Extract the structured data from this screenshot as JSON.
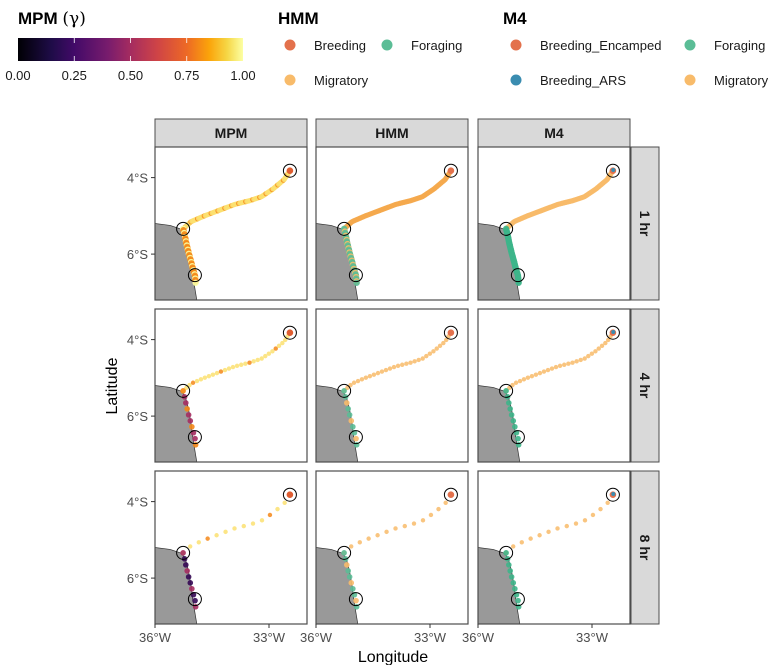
{
  "chart_data": {
    "type": "scatter",
    "facet_columns": [
      "MPM",
      "HMM",
      "M4"
    ],
    "facet_rows": [
      "1 hr",
      "4 hr",
      "8 hr"
    ],
    "xlabel": "Longitude",
    "ylabel": "Latitude",
    "x_ticks": [
      {
        "value": -36,
        "label": "36°W"
      },
      {
        "value": -33,
        "label": "33°W"
      }
    ],
    "y_ticks": [
      {
        "value": -4,
        "label": "4°S"
      },
      {
        "value": -6,
        "label": "6°S"
      }
    ],
    "xlim": [
      -36.0,
      -32.0
    ],
    "ylim": [
      -7.2,
      -3.2
    ],
    "land_polygon": [
      [
        -36.0,
        -5.2
      ],
      [
        -35.6,
        -5.25
      ],
      [
        -35.3,
        -5.35
      ],
      [
        -35.2,
        -5.5
      ],
      [
        -35.12,
        -5.8
      ],
      [
        -35.05,
        -6.2
      ],
      [
        -35.0,
        -6.6
      ],
      [
        -34.9,
        -7.2
      ],
      [
        -36.0,
        -7.2
      ]
    ],
    "highlight_circles": [
      [
        -32.45,
        -3.82
      ],
      [
        -35.26,
        -5.34
      ],
      [
        -34.95,
        -6.55
      ]
    ],
    "legends": {
      "mpm": {
        "title_text": "MPM",
        "title_symbol": "(γ)",
        "ticks": [
          "0.00",
          "0.25",
          "0.50",
          "0.75",
          "1.00"
        ],
        "range": [
          0,
          1
        ]
      },
      "hmm": {
        "title": "HMM",
        "items": [
          {
            "label": "Breeding",
            "color": "#E3714C"
          },
          {
            "label": "Foraging",
            "color": "#5BBD96"
          },
          {
            "label": "Migratory",
            "color": "#F8BB6A"
          }
        ]
      },
      "m4": {
        "title": "M4",
        "items": [
          {
            "label": "Breeding_Encamped",
            "color": "#E3714C"
          },
          {
            "label": "Foraging",
            "color": "#5BBD96"
          },
          {
            "label": "Breeding_ARS",
            "color": "#3A8CB0"
          },
          {
            "label": "Migratory",
            "color": "#F8BB6A"
          }
        ]
      }
    },
    "colors": {
      "land": "#999999",
      "strip_bg": "#D9D9D9",
      "panel_border": "#4D4D4D",
      "hmm_line": "#F5A94E",
      "m4_foraging": "#3DB58A"
    },
    "track": {
      "migratory": [
        [
          -35.26,
          -5.34
        ],
        [
          -35.05,
          -5.15
        ],
        [
          -34.7,
          -5.0
        ],
        [
          -34.3,
          -4.85
        ],
        [
          -33.9,
          -4.7
        ],
        [
          -33.5,
          -4.6
        ],
        [
          -33.2,
          -4.5
        ],
        [
          -32.9,
          -4.3
        ],
        [
          -32.6,
          -4.05
        ],
        [
          -32.45,
          -3.82
        ]
      ],
      "coastal": [
        [
          -35.26,
          -5.34
        ],
        [
          -35.22,
          -5.5
        ],
        [
          -35.18,
          -5.7
        ],
        [
          -35.12,
          -5.95
        ],
        [
          -35.05,
          -6.2
        ],
        [
          -35.0,
          -6.4
        ],
        [
          -34.95,
          -6.55
        ],
        [
          -34.93,
          -6.75
        ]
      ]
    },
    "panel_settings": {
      "row_point_counts": [
        120,
        30,
        14
      ],
      "mpm_migratory_gamma": 0.95,
      "mpm_coastal_gamma_by_row": [
        0.8,
        0.5,
        0.2
      ]
    }
  }
}
